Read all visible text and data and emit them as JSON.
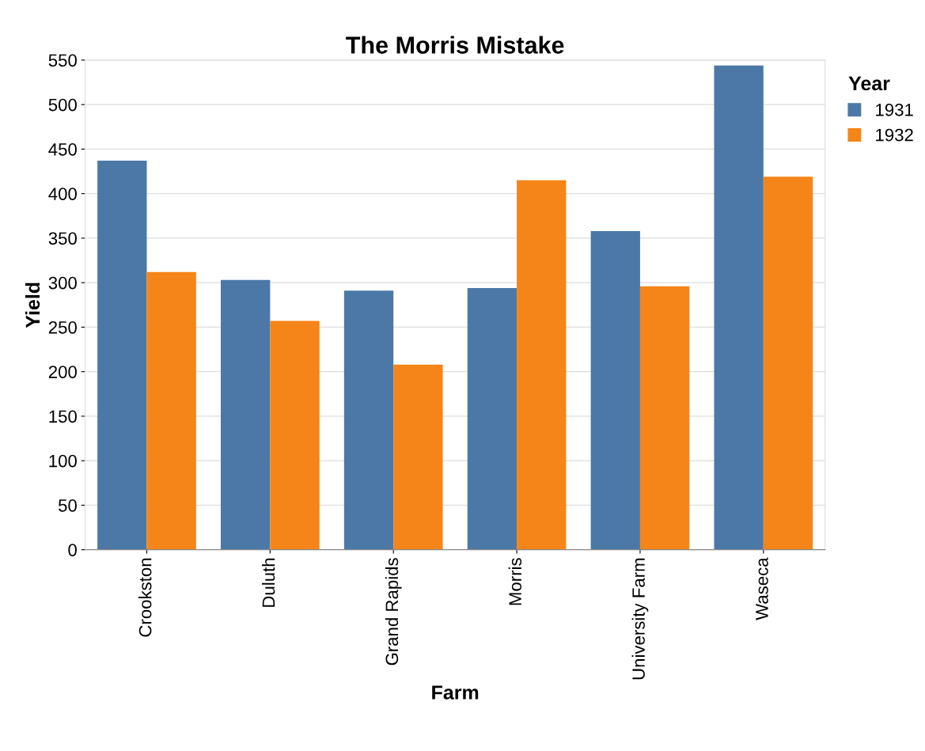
{
  "chart_data": {
    "type": "bar",
    "title": "The Morris Mistake",
    "xlabel": "Farm",
    "ylabel": "Yield",
    "legend_title": "Year",
    "categories": [
      "Crookston",
      "Duluth",
      "Grand Rapids",
      "Morris",
      "University Farm",
      "Waseca"
    ],
    "series": [
      {
        "name": "1931",
        "color": "#4c78a8",
        "values": [
          437,
          303,
          291,
          294,
          358,
          544
        ]
      },
      {
        "name": "1932",
        "color": "#f58518",
        "values": [
          312,
          257,
          208,
          415,
          296,
          419
        ]
      }
    ],
    "ylim": [
      0,
      550
    ],
    "yticks": [
      0,
      50,
      100,
      150,
      200,
      250,
      300,
      350,
      400,
      450,
      500,
      550
    ],
    "grid": "y",
    "legend": "top right"
  }
}
